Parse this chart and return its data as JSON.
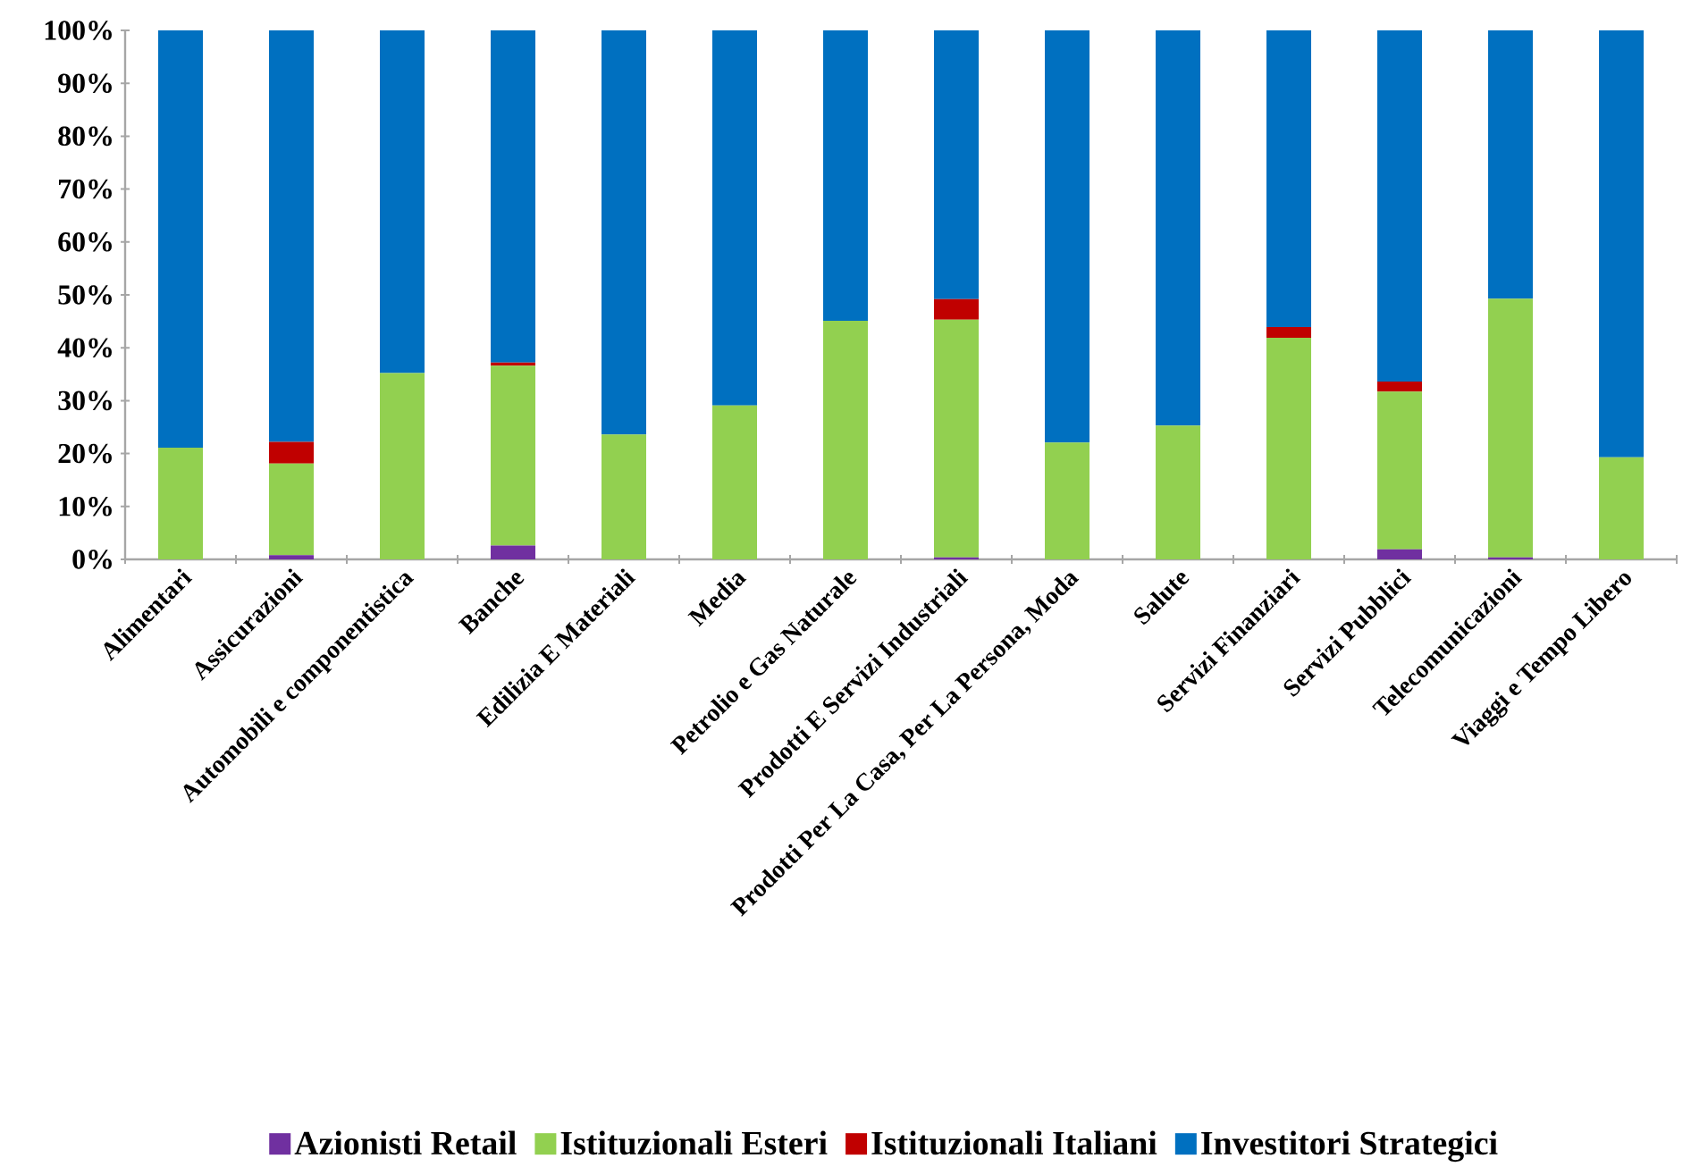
{
  "chart_data": {
    "type": "bar",
    "stacked": true,
    "categories": [
      "Alimentari",
      "Assicurazioni",
      "Automobili e componentistica",
      "Banche",
      "Edilizia E Materiali",
      "Media",
      "Petrolio e Gas Naturale",
      "Prodotti E Servizi Industriali",
      "Prodotti Per La Casa, Per La Persona, Moda",
      "Salute",
      "Servizi Finanziari",
      "Servizi Pubblici",
      "Telecomunicazioni",
      "Viaggi e Tempo Libero"
    ],
    "series": [
      {
        "name": "Azionisti Retail",
        "color": "#7030a0",
        "values": [
          0,
          0.8,
          0,
          2.6,
          0,
          0,
          0,
          0.4,
          0,
          0,
          0,
          1.9,
          0.4,
          0
        ]
      },
      {
        "name": "Istituzionali Esteri",
        "color": "#92d050",
        "values": [
          21.1,
          17.3,
          35.2,
          34.0,
          23.6,
          29.1,
          45.1,
          44.9,
          22.1,
          25.3,
          41.9,
          29.8,
          48.9,
          19.3
        ]
      },
      {
        "name": "Istituzionali Italiani",
        "color": "#c00000",
        "values": [
          0,
          4.1,
          0,
          0.6,
          0,
          0,
          0,
          3.9,
          0,
          0,
          2.0,
          1.9,
          0,
          0
        ]
      },
      {
        "name": "Investitori Strategici",
        "color": "#0070c0",
        "values": [
          78.9,
          77.8,
          64.8,
          62.8,
          76.4,
          70.9,
          54.9,
          50.8,
          77.9,
          74.7,
          56.1,
          66.4,
          50.7,
          80.7
        ]
      }
    ],
    "ylim": [
      0,
      100
    ],
    "yticks": [
      {
        "value": 0,
        "label": "0%"
      },
      {
        "value": 10,
        "label": "10%"
      },
      {
        "value": 20,
        "label": "20%"
      },
      {
        "value": 30,
        "label": "30%"
      },
      {
        "value": 40,
        "label": "40%"
      },
      {
        "value": 50,
        "label": "50%"
      },
      {
        "value": 60,
        "label": "60%"
      },
      {
        "value": 70,
        "label": "70%"
      },
      {
        "value": 80,
        "label": "80%"
      },
      {
        "value": 90,
        "label": "90%"
      },
      {
        "value": 100,
        "label": "100%"
      }
    ],
    "grid": false,
    "legend": "bottom"
  }
}
